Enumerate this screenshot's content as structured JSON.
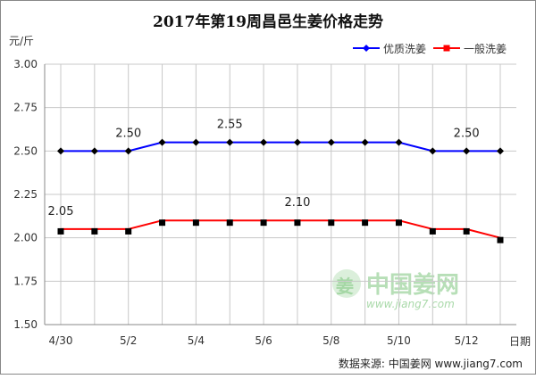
{
  "chart_data": {
    "type": "line",
    "title": "2017年第19周昌邑生姜价格走势",
    "ylabel": "元/斤",
    "xlabel": "日期",
    "ylim": [
      1.5,
      3.0
    ],
    "yticks": [
      "3.00",
      "2.75",
      "2.50",
      "2.25",
      "2.00",
      "1.75",
      "1.50"
    ],
    "grid": true,
    "legend_position": "top-right",
    "x": [
      "4/30",
      "5/1",
      "5/2",
      "5/3",
      "5/4",
      "5/5",
      "5/6",
      "5/7",
      "5/8",
      "5/9",
      "5/10",
      "5/11",
      "5/12",
      "5/13"
    ],
    "xtick_labels": [
      "4/30",
      "5/2",
      "5/4",
      "5/6",
      "5/8",
      "5/10",
      "5/12"
    ],
    "series": [
      {
        "name": "优质洗姜",
        "color": "#0000ff",
        "marker": "diamond",
        "values": [
          2.5,
          2.5,
          2.5,
          2.55,
          2.55,
          2.55,
          2.55,
          2.55,
          2.55,
          2.55,
          2.55,
          2.5,
          2.5,
          2.5
        ]
      },
      {
        "name": "一般洗姜",
        "color": "#ff0000",
        "marker": "square",
        "values": [
          2.05,
          2.05,
          2.05,
          2.1,
          2.1,
          2.1,
          2.1,
          2.1,
          2.1,
          2.1,
          2.1,
          2.05,
          2.05,
          2.0
        ]
      }
    ],
    "annotations": [
      {
        "text": "2.50",
        "x_index": 2,
        "y": 2.5,
        "series": 0
      },
      {
        "text": "2.55",
        "x_index": 5,
        "y": 2.55,
        "series": 0
      },
      {
        "text": "2.50",
        "x_index": 12,
        "y": 2.5,
        "series": 0
      },
      {
        "text": "2.05",
        "x_index": 0,
        "y": 2.05,
        "series": 1
      },
      {
        "text": "2.10",
        "x_index": 7,
        "y": 2.1,
        "series": 1
      }
    ]
  },
  "watermark": {
    "text": "中国姜网",
    "url": "www.jiang7.com",
    "logo_char": "姜"
  },
  "source": "数据来源: 中国姜网 www.jiang7.com"
}
